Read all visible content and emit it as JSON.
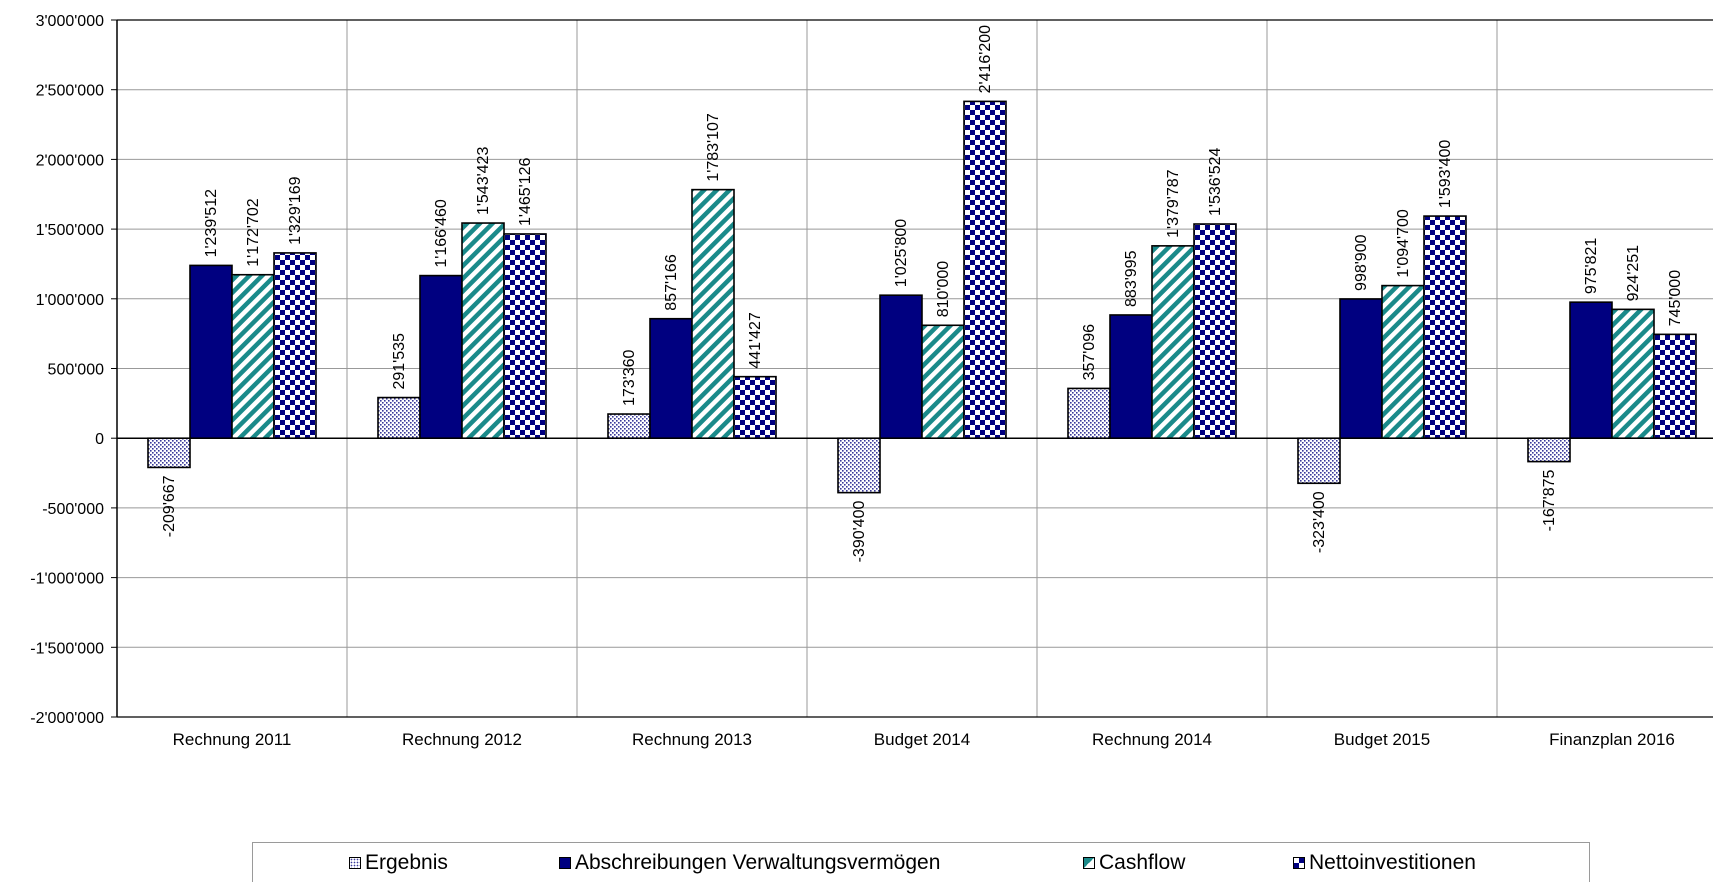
{
  "chart_data": {
    "type": "bar",
    "categories": [
      "Rechnung 2011",
      "Rechnung 2012",
      "Rechnung 2013",
      "Budget 2014",
      "Rechnung 2014",
      "Budget 2015",
      "Finanzplan 2016"
    ],
    "series": [
      {
        "name": "Ergebnis",
        "values": [
          -209667,
          291535,
          173360,
          -390400,
          357096,
          -323400,
          -167875
        ],
        "labels": [
          "-209'667",
          "291'535",
          "173'360",
          "-390'400",
          "357'096",
          "-323'400",
          "-167'875"
        ]
      },
      {
        "name": "Abschreibungen Verwaltungsvermögen",
        "values": [
          1239512,
          1166460,
          857166,
          1025800,
          883995,
          998900,
          975821
        ],
        "labels": [
          "1'239'512",
          "1'166'460",
          "857'166",
          "1'025'800",
          "883'995",
          "998'900",
          "975'821"
        ]
      },
      {
        "name": "Cashflow",
        "values": [
          1172702,
          1543423,
          1783107,
          810000,
          1379787,
          1094700,
          924251
        ],
        "labels": [
          "1'172'702",
          "1'543'423",
          "1'783'107",
          "810'000",
          "1'379'787",
          "1'094'700",
          "924'251"
        ]
      },
      {
        "name": "Nettoinvestitionen",
        "values": [
          1329169,
          1465126,
          441427,
          2416200,
          1536524,
          1593400,
          745000
        ],
        "labels": [
          "1'329'169",
          "1'465'126",
          "441'427",
          "2'416'200",
          "1'536'524",
          "1'593'400",
          "745'000"
        ]
      }
    ],
    "ylim": [
      -2000000,
      3000000
    ],
    "yticks": [
      3000000,
      2500000,
      2000000,
      1500000,
      1000000,
      500000,
      0,
      -500000,
      -1000000,
      -1500000,
      -2000000
    ],
    "ytick_labels": [
      "3'000'000",
      "2'500'000",
      "2'000'000",
      "1'500'000",
      "1'000'000",
      "500'000",
      "0",
      "-500'000",
      "-1'000'000",
      "-1'500'000",
      "-2'000'000"
    ],
    "grid": true,
    "legend_position": "bottom",
    "colors": {
      "Ergebnis": "#c8c8f0",
      "Abschreibungen Verwaltungsvermögen": "#000080",
      "Cashflow": "#1a8a8a",
      "Nettoinvestitionen": "#000080",
      "grid": "#999999"
    },
    "patterns": {
      "Ergebnis": "dots",
      "Abschreibungen Verwaltungsvermögen": "solid",
      "Cashflow": "diagonal-stripes",
      "Nettoinvestitionen": "checkerboard"
    }
  }
}
